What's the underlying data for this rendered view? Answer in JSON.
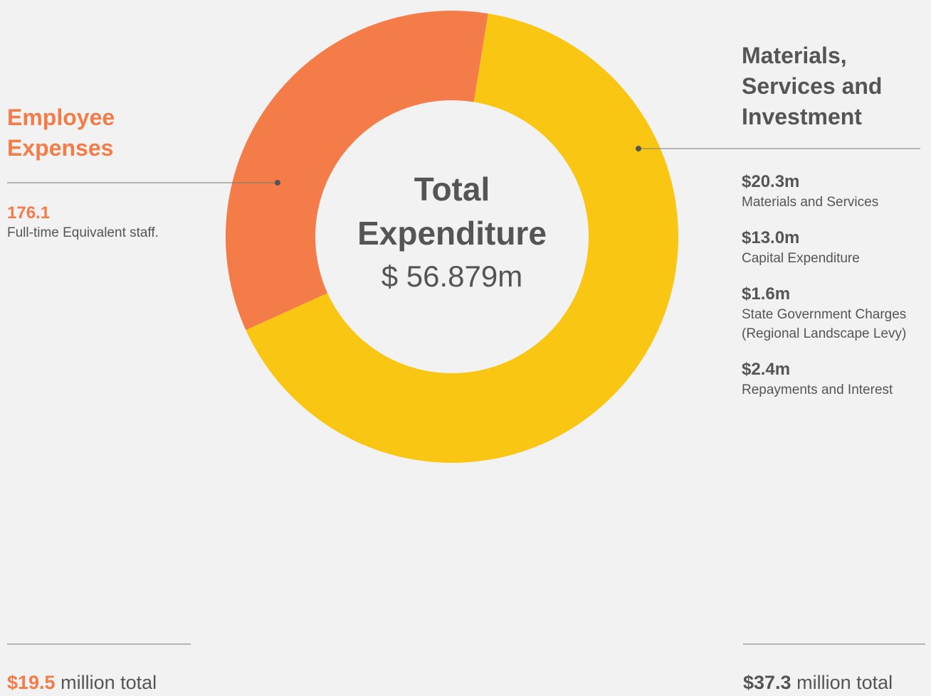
{
  "chart_data": {
    "type": "donut",
    "center_title": "Total Expenditure",
    "center_value": "$ 56.879m",
    "categories": [
      "Employee Expenses",
      "Materials, Services and Investment"
    ],
    "values": [
      19.5,
      37.3
    ],
    "value_labels": [
      "$19.5",
      "$37.3"
    ],
    "total_suffixes": [
      "million total",
      "million total"
    ],
    "colors": [
      "#f47c48",
      "#f9c713"
    ]
  },
  "employee_detail": {
    "value": "176.1",
    "label": "Full-time Equivalent staff."
  },
  "materials_details": [
    {
      "value": "$20.3m",
      "label": "Materials and Services"
    },
    {
      "value": "$13.0m",
      "label": "Capital Expenditure"
    },
    {
      "value": "$1.6m",
      "label": "State Government Charges (Regional Landscape Levy)"
    },
    {
      "value": "$2.4m",
      "label": "Repayments and Interest"
    }
  ]
}
